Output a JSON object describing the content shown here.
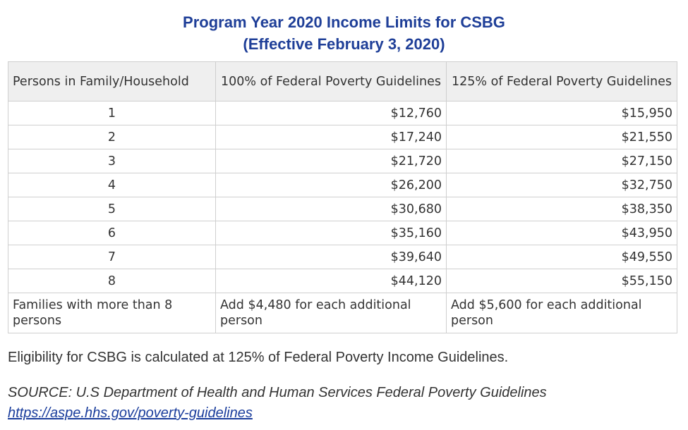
{
  "title": {
    "line1": "Program Year 2020 Income Limits for CSBG",
    "line2": "(Effective February 3, 2020)"
  },
  "table": {
    "headers": [
      "Persons in Family/Household",
      "100% of Federal Poverty Guidelines",
      "125% of Federal Poverty Guidelines"
    ],
    "rows": [
      {
        "persons": "1",
        "pct100": "$12,760",
        "pct125": "$15,950"
      },
      {
        "persons": "2",
        "pct100": "$17,240",
        "pct125": "$21,550"
      },
      {
        "persons": "3",
        "pct100": "$21,720",
        "pct125": "$27,150"
      },
      {
        "persons": "4",
        "pct100": "$26,200",
        "pct125": "$32,750"
      },
      {
        "persons": "5",
        "pct100": "$30,680",
        "pct125": "$38,350"
      },
      {
        "persons": "6",
        "pct100": "$35,160",
        "pct125": "$43,950"
      },
      {
        "persons": "7",
        "pct100": "$39,640",
        "pct125": "$49,550"
      },
      {
        "persons": "8",
        "pct100": "$44,120",
        "pct125": "$55,150"
      }
    ],
    "footer": {
      "label": "Families with more than 8 persons",
      "pct100": "Add $4,480 for each additional person",
      "pct125": "Add $5,600 for each additional person"
    }
  },
  "note": "Eligibility for CSBG is calculated at 125% of Federal Poverty Income Guidelines.",
  "source": {
    "text": "SOURCE: U.S Department of Health and Human Services Federal Poverty Guidelines",
    "link_text": "https://aspe.hhs.gov/poverty-guidelines"
  },
  "colors": {
    "title": "#1f3f98",
    "header_bg": "#efefef",
    "border": "#cfcfcf",
    "text": "#333333",
    "link": "#1a3d9c"
  }
}
